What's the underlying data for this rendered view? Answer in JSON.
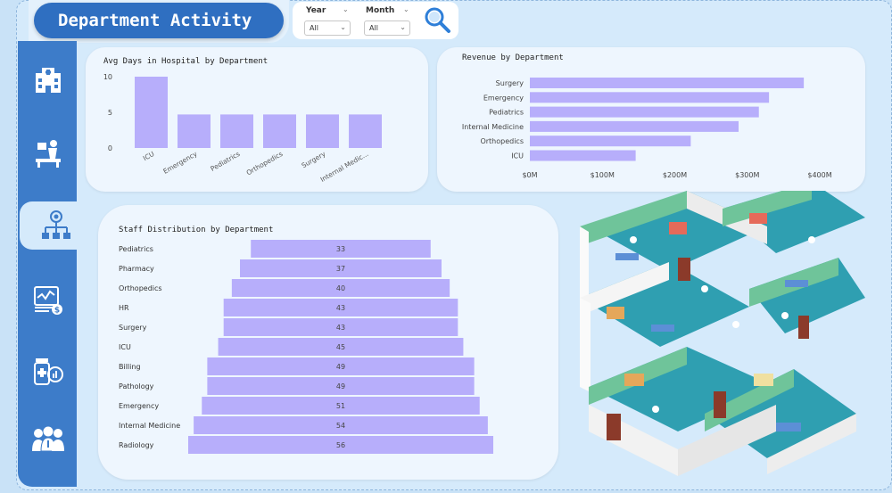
{
  "header": {
    "title": "Department Activity"
  },
  "filters": {
    "year": {
      "label": "Year",
      "value": "All"
    },
    "month": {
      "label": "Month",
      "value": "All"
    }
  },
  "sidebar": {
    "items": [
      {
        "icon": "hospital-icon",
        "active": false
      },
      {
        "icon": "patient-icon",
        "active": false
      },
      {
        "icon": "org-chart-icon",
        "active": true
      },
      {
        "icon": "finance-icon",
        "active": false
      },
      {
        "icon": "medicine-icon",
        "active": false
      },
      {
        "icon": "staff-icon",
        "active": false
      }
    ]
  },
  "colors": {
    "bar": "#b7aefb",
    "sidebar": "#3d7cc9",
    "title_bg": "#2f6fc1",
    "card": "#eef6fe"
  },
  "chart_data": [
    {
      "id": "avg_days",
      "type": "bar",
      "title": "Avg Days in Hospital by Department",
      "categories": [
        "ICU",
        "Emergency",
        "Pediatrics",
        "Orthopedics",
        "Surgery",
        "Internal Medic..."
      ],
      "values": [
        10,
        4.7,
        4.7,
        4.7,
        4.7,
        4.7
      ],
      "yticks": [
        "10",
        "5",
        "0"
      ],
      "ylim": [
        0,
        10
      ]
    },
    {
      "id": "revenue",
      "type": "bar",
      "orientation": "horizontal",
      "title": "Revenue by Department",
      "categories": [
        "Surgery",
        "Emergency",
        "Pediatrics",
        "Internal Medicine",
        "Orthopedics",
        "ICU"
      ],
      "values": [
        378,
        330,
        316,
        288,
        222,
        146
      ],
      "xticks": [
        "$0M",
        "$100M",
        "$200M",
        "$300M",
        "$400M"
      ],
      "xlim": [
        0,
        400
      ]
    },
    {
      "id": "staff",
      "type": "bar",
      "orientation": "horizontal-centered",
      "title": "Staff Distribution by Department",
      "categories": [
        "Pediatrics",
        "Pharmacy",
        "Orthopedics",
        "HR",
        "Surgery",
        "ICU",
        "Billing",
        "Pathology",
        "Emergency",
        "Internal Medicine",
        "Radiology"
      ],
      "values": [
        33,
        37,
        40,
        43,
        43,
        45,
        49,
        49,
        51,
        54,
        56
      ],
      "data_labels": [
        "33",
        "37",
        "40",
        "43",
        "43",
        "45",
        "49",
        "49",
        "51",
        "54",
        "56"
      ]
    }
  ]
}
